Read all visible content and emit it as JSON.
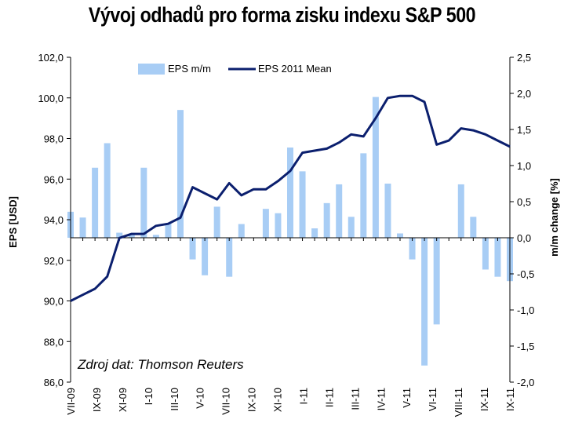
{
  "chart_data": {
    "type": "bar+line",
    "title": "Vývoj odhadů pro forma zisku indexu S&P 500",
    "ylabel_left": "EPS [USD]",
    "ylabel_right": "m/m change [%]",
    "ylim_left": [
      86,
      102
    ],
    "ylim_right": [
      -2,
      2.5
    ],
    "yticks_left": [
      "102,0",
      "100,0",
      "98,0",
      "96,0",
      "94,0",
      "92,0",
      "90,0",
      "88,0",
      "86,0"
    ],
    "yticks_right": [
      "2,5",
      "2,0",
      "1,5",
      "1,0",
      "0,5",
      "0,0",
      "-0,5",
      "-1,0",
      "-1,5",
      "-2,0"
    ],
    "xtick_labels": [
      "VII-09",
      "IX-09",
      "XI-09",
      "I-10",
      "III-10",
      "V-10",
      "VII-10",
      "IX-10",
      "XI-10",
      "I-11",
      "III-11",
      "V-11",
      "VII-11",
      "IX-11",
      "XI-11",
      "I-11",
      "III-11",
      "IV-11",
      "V-11",
      "VI-11",
      "VIII-11",
      "IX-11",
      "XI-11",
      "IX-11"
    ],
    "xtick_labels_shown": [
      "VII-09",
      "IX-09",
      "XI-09",
      "I-10",
      "III-10",
      "V-10",
      "VII-10",
      "IX-10",
      "XI-10",
      "I-11",
      "II-11",
      "III-11",
      "IV-11",
      "V-11",
      "VI-11",
      "VIII-11",
      "IX-11",
      "IX-11"
    ],
    "series": [
      {
        "name": "EPS m/m",
        "type": "bar",
        "axis": "right",
        "color": "#a8cdf5",
        "values": [
          0.36,
          0.28,
          0.97,
          1.31,
          0.07,
          0.04,
          0.97,
          0.04,
          0.2,
          1.77,
          -0.3,
          -0.52,
          0.43,
          -0.54,
          0.19,
          0,
          0.4,
          0.34,
          1.25,
          0.92,
          0.13,
          0.48,
          0.74,
          0.29,
          1.17,
          1.95,
          0.75,
          0.06,
          -0.3,
          -1.77,
          -1.2,
          0,
          0.74,
          0.29,
          -0.44,
          -0.54,
          -0.6
        ]
      },
      {
        "name": "EPS 2011 Mean",
        "type": "line",
        "axis": "left",
        "color": "#0b1f6e",
        "values": [
          90.0,
          90.3,
          90.6,
          91.2,
          93.1,
          93.3,
          93.3,
          93.7,
          93.8,
          94.1,
          95.6,
          95.3,
          95.0,
          95.8,
          95.2,
          95.5,
          95.5,
          95.9,
          96.4,
          97.3,
          97.4,
          97.5,
          97.8,
          98.2,
          98.1,
          99.0,
          100.0,
          100.1,
          100.1,
          99.8,
          97.7,
          97.9,
          98.5,
          98.4,
          98.2,
          97.9,
          97.6
        ]
      }
    ],
    "legend": "top",
    "annotation": "Zdroj dat: Thomson Reuters"
  }
}
